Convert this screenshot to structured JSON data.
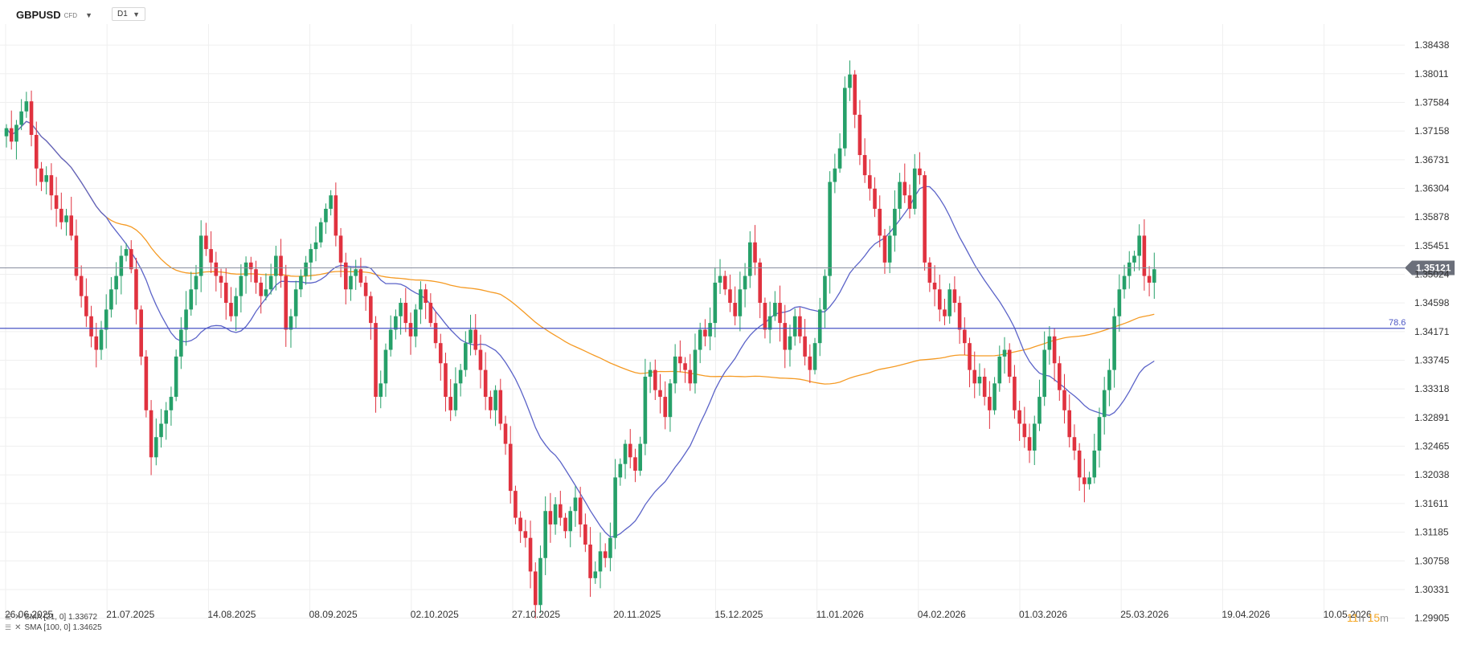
{
  "header": {
    "symbol": "GBPUSD",
    "symbol_type": "CFD",
    "timeframe": "D1"
  },
  "price_badge": "1.35121",
  "fib_label": "78.6",
  "timer": {
    "hours": "11",
    "h": "h",
    "minutes": "15",
    "m": "m"
  },
  "legend": [
    {
      "label": "SMA [21, 0] 1.33672"
    },
    {
      "label": "SMA [100, 0] 1.34625"
    }
  ],
  "colors": {
    "up": "#26a069",
    "down": "#e0323f",
    "sma21": "#5b63c8",
    "sma100": "#f59a23",
    "fib": "#4a55c4",
    "price_line": "#8a8fa0",
    "badge": "#6b6f7a",
    "grid": "#efefef"
  },
  "chart_data": {
    "type": "candlestick",
    "instrument": "GBPUSD",
    "timeframe": "D1",
    "ylim": [
      1.299,
      1.3875
    ],
    "y_ticks": [
      "1.38438",
      "1.38011",
      "1.37584",
      "1.37158",
      "1.36731",
      "1.36304",
      "1.35878",
      "1.35451",
      "1.35024",
      "1.34598",
      "1.34171",
      "1.33745",
      "1.33318",
      "1.32891",
      "1.32465",
      "1.32038",
      "1.31611",
      "1.31185",
      "1.30758",
      "1.30331",
      "1.29905"
    ],
    "x_ticks": [
      "26.06.2025",
      "21.07.2025",
      "14.08.2025",
      "08.09.2025",
      "02.10.2025",
      "27.10.2025",
      "20.11.2025",
      "15.12.2025",
      "11.01.2026",
      "04.02.2026",
      "01.03.2026",
      "25.03.2026",
      "19.04.2026",
      "10.05.2026"
    ],
    "current_price": 1.35121,
    "fib_level": {
      "label": "78.6",
      "value": 1.3422
    },
    "sma_legend": [
      "SMA [21, 0] 1.33672",
      "SMA [100, 0] 1.34625"
    ],
    "close": [
      1.372,
      1.37,
      1.3725,
      1.3745,
      1.376,
      1.371,
      1.366,
      1.364,
      1.365,
      1.362,
      1.36,
      1.358,
      1.359,
      1.356,
      1.35,
      1.347,
      1.344,
      1.341,
      1.339,
      1.342,
      1.345,
      1.348,
      1.35,
      1.353,
      1.354,
      1.351,
      1.345,
      1.338,
      1.33,
      1.323,
      1.326,
      1.328,
      1.33,
      1.332,
      1.338,
      1.342,
      1.345,
      1.348,
      1.35,
      1.356,
      1.354,
      1.352,
      1.35,
      1.349,
      1.346,
      1.344,
      1.347,
      1.35,
      1.352,
      1.351,
      1.349,
      1.347,
      1.348,
      1.35,
      1.353,
      1.35,
      1.342,
      1.344,
      1.348,
      1.35,
      1.352,
      1.354,
      1.355,
      1.358,
      1.36,
      1.362,
      1.356,
      1.352,
      1.348,
      1.35,
      1.351,
      1.349,
      1.347,
      1.343,
      1.332,
      1.334,
      1.339,
      1.342,
      1.344,
      1.346,
      1.343,
      1.341,
      1.345,
      1.348,
      1.346,
      1.343,
      1.34,
      1.337,
      1.332,
      1.33,
      1.334,
      1.336,
      1.34,
      1.342,
      1.339,
      1.336,
      1.332,
      1.33,
      1.333,
      1.328,
      1.325,
      1.318,
      1.314,
      1.312,
      1.311,
      1.306,
      1.301,
      1.308,
      1.315,
      1.313,
      1.316,
      1.314,
      1.312,
      1.315,
      1.317,
      1.313,
      1.31,
      1.305,
      1.306,
      1.309,
      1.308,
      1.311,
      1.32,
      1.322,
      1.325,
      1.323,
      1.321,
      1.325,
      1.335,
      1.336,
      1.333,
      1.332,
      1.329,
      1.334,
      1.338,
      1.337,
      1.336,
      1.334,
      1.339,
      1.342,
      1.341,
      1.343,
      1.349,
      1.35,
      1.348,
      1.346,
      1.344,
      1.348,
      1.35,
      1.355,
      1.352,
      1.346,
      1.342,
      1.344,
      1.346,
      1.343,
      1.339,
      1.341,
      1.344,
      1.341,
      1.338,
      1.336,
      1.34,
      1.345,
      1.35,
      1.364,
      1.366,
      1.369,
      1.378,
      1.38,
      1.374,
      1.368,
      1.365,
      1.363,
      1.36,
      1.356,
      1.352,
      1.356,
      1.36,
      1.364,
      1.362,
      1.36,
      1.366,
      1.365,
      1.352,
      1.349,
      1.348,
      1.345,
      1.344,
      1.348,
      1.346,
      1.342,
      1.34,
      1.336,
      1.334,
      1.335,
      1.332,
      1.33,
      1.334,
      1.338,
      1.339,
      1.335,
      1.33,
      1.328,
      1.326,
      1.324,
      1.328,
      1.332,
      1.339,
      1.341,
      1.337,
      1.333,
      1.33,
      1.326,
      1.324,
      1.32,
      1.319,
      1.32,
      1.324,
      1.329,
      1.333,
      1.336,
      1.344,
      1.348,
      1.35,
      1.352,
      1.353,
      1.356,
      1.35,
      1.349,
      1.351
    ],
    "series": [
      {
        "name": "SMA [21, 0]",
        "value_last": 1.33672
      },
      {
        "name": "SMA [100, 0]",
        "value_last": 1.34625
      }
    ]
  }
}
